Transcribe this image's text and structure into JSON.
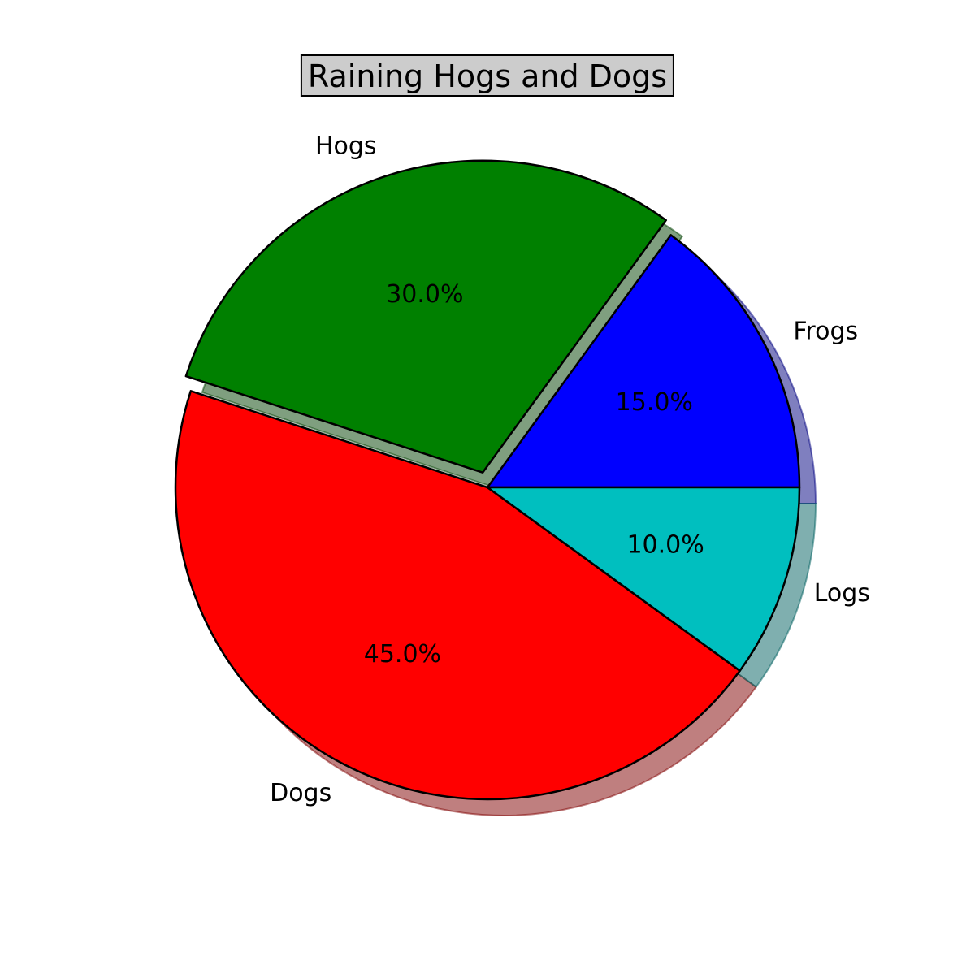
{
  "chart_data": {
    "type": "pie",
    "title": "Raining Hogs and Dogs",
    "labels": [
      "Frogs",
      "Hogs",
      "Dogs",
      "Logs"
    ],
    "values": [
      15,
      30,
      45,
      10
    ],
    "autopct": [
      "15.0%",
      "30.0%",
      "45.0%",
      "10.0%"
    ],
    "colors": [
      "#0000ff",
      "#008000",
      "#ff0000",
      "#00bfbf"
    ],
    "explode": [
      0,
      0.05,
      0,
      0
    ],
    "shadow": true,
    "start_angle_degrees": 0,
    "direction": "counterclockwise"
  }
}
